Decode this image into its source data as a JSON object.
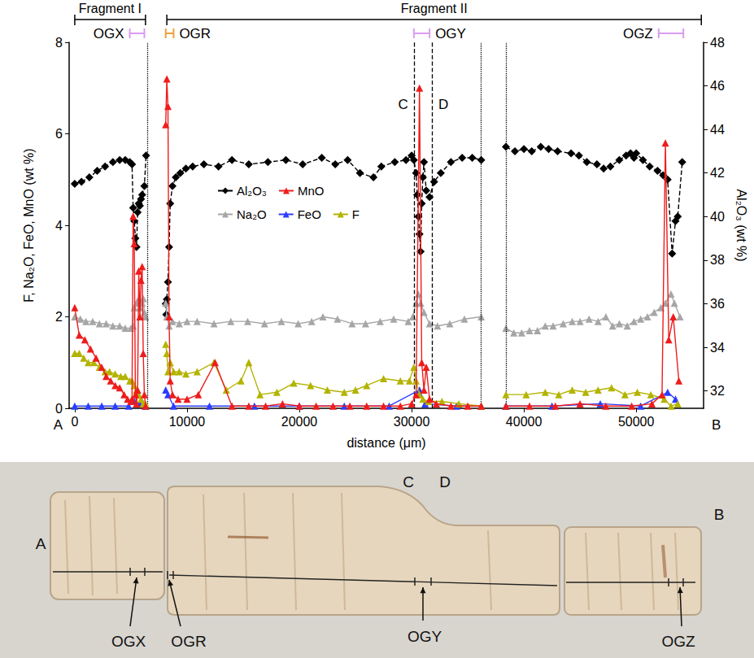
{
  "chart_data": {
    "type": "line",
    "x_label": "distance (μm)",
    "y_label": "F, Na₂O, FeO, MnO (wt %)",
    "y2_label": "Al₂O₃ (wt %)",
    "xlim": [
      -500,
      56000
    ],
    "xticks": [
      0,
      10000,
      20000,
      30000,
      40000,
      50000
    ],
    "ylim": [
      0,
      8
    ],
    "yticks": [
      0,
      2,
      4,
      6,
      8
    ],
    "y2lim": [
      31.2,
      48
    ],
    "y2ticks": [
      32,
      34,
      36,
      38,
      40,
      42,
      44,
      46,
      48
    ],
    "grid": false,
    "legend": "left",
    "end_labels": [
      "A",
      "B"
    ],
    "fragments": [
      {
        "label": "Fragment I",
        "from": 0,
        "to": 6300
      },
      {
        "label": "Fragment II",
        "from": 8200,
        "to": 55800
      }
    ],
    "spots": [
      {
        "label": "OGX",
        "from": 4900,
        "to": 6200,
        "color": "#d99cf0"
      },
      {
        "label": "OGR",
        "from": 8100,
        "to": 8800,
        "color": "#f0a040"
      },
      {
        "label": "OGY",
        "from": 30200,
        "to": 31600,
        "color": "#d99cf0"
      },
      {
        "label": "OGZ",
        "from": 52000,
        "to": 54200,
        "color": "#d99cf0"
      }
    ],
    "vlines": [
      {
        "x": 6450,
        "line_style": "dotted"
      },
      {
        "x": 30200,
        "line_style": "dashed",
        "label": "C"
      },
      {
        "x": 31800,
        "line_style": "dashed",
        "label": "D"
      },
      {
        "x": 36200,
        "line_style": "dotted"
      },
      {
        "x": 38400,
        "line_style": "dotted"
      }
    ],
    "series": [
      {
        "name": "Al₂O₃",
        "color": "#000000",
        "axis": "y2",
        "marker": "diamond",
        "line_style": "dashed",
        "x": [
          0,
          600,
          1300,
          2000,
          2700,
          3400,
          4000,
          4500,
          4900,
          5100,
          5200,
          5300,
          5400,
          5500,
          5600,
          5700,
          5800,
          5900,
          6000,
          6200,
          6350,
          7000,
          8100,
          8150,
          8200,
          8300,
          8400,
          8500,
          8700,
          9000,
          9400,
          9900,
          10500,
          11500,
          12800,
          14000,
          15500,
          17200,
          18800,
          20300,
          22000,
          23200,
          24300,
          25400,
          26600,
          27300,
          28500,
          29500,
          30000,
          30200,
          30400,
          30500,
          30600,
          30700,
          30800,
          30900,
          31000,
          31100,
          31300,
          31600,
          32000,
          32600,
          33500,
          34500,
          35400,
          36200,
          37300,
          38400,
          39200,
          40000,
          40700,
          41500,
          42200,
          43000,
          44200,
          44900,
          45600,
          46500,
          47100,
          47700,
          48500,
          49100,
          49500,
          49800,
          50000,
          50600,
          51200,
          51900,
          52400,
          52800,
          53200,
          53500,
          53700,
          54100
        ],
        "values": [
          41.5,
          41.6,
          41.8,
          42.1,
          42.3,
          42.5,
          42.6,
          42.6,
          42.5,
          42.4,
          40.4,
          39.8,
          39.0,
          38.6,
          40.2,
          40.6,
          40.5,
          40.8,
          41.0,
          41.4,
          42.8,
          null,
          36.0,
          35.5,
          36.2,
          37.0,
          38.6,
          40.6,
          41.4,
          41.8,
          42.0,
          42.2,
          42.3,
          42.4,
          42.3,
          42.6,
          42.4,
          42.5,
          42.6,
          42.4,
          42.7,
          42.4,
          42.6,
          42.0,
          41.8,
          42.3,
          42.5,
          42.6,
          42.8,
          42.6,
          42.0,
          41.0,
          40.0,
          39.2,
          38.4,
          40.6,
          41.8,
          42.5,
          41.2,
          40.9,
          41.6,
          42.0,
          42.5,
          42.7,
          42.7,
          42.6,
          null,
          43.2,
          43.0,
          43.1,
          43.0,
          43.2,
          43.1,
          43.0,
          42.9,
          42.8,
          42.5,
          42.4,
          42.2,
          42.3,
          42.6,
          42.8,
          42.9,
          42.7,
          42.9,
          42.6,
          42.3,
          42.1,
          41.9,
          41.7,
          38.3,
          39.8,
          40.0,
          42.5
        ]
      },
      {
        "name": "MnO",
        "color": "#ee1c1c",
        "marker": "triangle",
        "line_style": "solid",
        "x": [
          0,
          400,
          900,
          1400,
          1900,
          2400,
          2800,
          3200,
          3600,
          4000,
          4400,
          4700,
          5000,
          5100,
          5200,
          5300,
          5400,
          5500,
          5600,
          5700,
          5800,
          5900,
          6000,
          6100,
          6200,
          6300,
          7000,
          8100,
          8200,
          8300,
          8400,
          8500,
          8700,
          9200,
          10000,
          11000,
          12500,
          14000,
          15500,
          17000,
          18500,
          20000,
          21500,
          23000,
          24500,
          26000,
          27500,
          29000,
          30000,
          30400,
          30700,
          30900,
          31100,
          31300,
          31600,
          32200,
          33500,
          35000,
          36200,
          37300,
          38400,
          40500,
          42800,
          45000,
          47300,
          49600,
          51400,
          52300,
          52600,
          52900,
          53300,
          53800
        ],
        "values": [
          2.2,
          1.6,
          1.5,
          1.3,
          1.1,
          0.9,
          0.7,
          0.6,
          0.5,
          0.45,
          0.3,
          0.2,
          0.15,
          0.2,
          4.2,
          3.6,
          0.3,
          0.1,
          0.4,
          3.0,
          2.0,
          2.8,
          3.1,
          1.2,
          0.3,
          0.05,
          null,
          6.2,
          7.2,
          6.6,
          2.0,
          0.6,
          0.3,
          0.2,
          0.2,
          0.3,
          1.0,
          0.05,
          0.05,
          0.05,
          0.1,
          0.05,
          0.05,
          0.05,
          0.05,
          0.05,
          0.05,
          0.05,
          0.1,
          0.3,
          7.0,
          1.0,
          0.4,
          0.9,
          0.2,
          0.1,
          0.05,
          0.05,
          0.05,
          null,
          0.05,
          0.05,
          0.05,
          0.1,
          0.05,
          0.05,
          0.1,
          0.3,
          5.8,
          1.5,
          2.0,
          0.6
        ]
      },
      {
        "name": "Na₂O",
        "color": "#a6a6a6",
        "marker": "triangle",
        "line_style": "solid",
        "x": [
          0,
          500,
          1000,
          1600,
          2200,
          2800,
          3400,
          4000,
          4500,
          5000,
          5200,
          5300,
          5500,
          5600,
          5800,
          6000,
          6100,
          6200,
          6300,
          7000,
          8100,
          8200,
          8400,
          8700,
          9300,
          10000,
          10900,
          12400,
          13900,
          15400,
          16900,
          18400,
          19900,
          21100,
          22100,
          23400,
          24700,
          25900,
          27200,
          28400,
          29700,
          30100,
          30400,
          30600,
          30800,
          31100,
          31600,
          32300,
          33400,
          34700,
          36200,
          37300,
          38400,
          39100,
          39800,
          40500,
          41200,
          41900,
          42600,
          43500,
          44300,
          45000,
          45800,
          46600,
          47300,
          47900,
          48500,
          49200,
          49800,
          50400,
          51000,
          51600,
          52200,
          52600,
          53100,
          53400,
          53900
        ],
        "values": [
          2.0,
          1.95,
          1.9,
          1.9,
          1.85,
          1.85,
          1.8,
          1.8,
          1.75,
          1.75,
          1.8,
          2.2,
          2.3,
          2.35,
          2.2,
          2.3,
          2.4,
          2.1,
          2.0,
          null,
          2.3,
          2.0,
          1.8,
          1.9,
          1.85,
          1.9,
          1.9,
          1.85,
          1.9,
          1.9,
          1.85,
          1.9,
          1.85,
          1.9,
          2.0,
          1.95,
          1.85,
          1.85,
          1.9,
          1.95,
          1.9,
          2.0,
          2.3,
          2.5,
          2.3,
          2.1,
          1.85,
          1.8,
          1.85,
          1.95,
          2.0,
          null,
          1.75,
          1.65,
          1.65,
          1.7,
          1.7,
          1.8,
          1.8,
          1.85,
          1.9,
          1.9,
          1.95,
          1.9,
          2.0,
          1.8,
          1.85,
          1.8,
          1.9,
          1.95,
          2.0,
          2.1,
          2.2,
          2.3,
          2.5,
          2.3,
          2.0
        ]
      },
      {
        "name": "FeO",
        "color": "#2a3cff",
        "marker": "triangle",
        "line_style": "solid",
        "x": [
          0,
          1200,
          2400,
          3600,
          4800,
          5300,
          5800,
          6300,
          7000,
          8100,
          8300,
          8800,
          12000,
          16000,
          20000,
          24000,
          28000,
          30700,
          31200,
          34000,
          36200,
          37300,
          38400,
          42500,
          46800,
          50400,
          52800,
          53500
        ],
        "values": [
          0.05,
          0.05,
          0.05,
          0.05,
          0.05,
          0.15,
          0.1,
          0.05,
          null,
          0.4,
          0.3,
          0.05,
          0.05,
          0.05,
          0.05,
          0.05,
          0.05,
          0.4,
          0.1,
          0.05,
          0.05,
          null,
          0.05,
          0.05,
          0.1,
          0.05,
          0.35,
          0.2
        ]
      },
      {
        "name": "F",
        "color": "#b3b300",
        "marker": "triangle",
        "line_style": "solid",
        "x": [
          0,
          400,
          800,
          1200,
          1700,
          2200,
          2700,
          3100,
          3600,
          4100,
          4500,
          4900,
          5100,
          5300,
          5500,
          5700,
          5900,
          6100,
          6300,
          7000,
          8100,
          8200,
          8300,
          8500,
          8800,
          9300,
          9900,
          10900,
          12400,
          13500,
          14800,
          15500,
          16500,
          18000,
          19500,
          21000,
          22500,
          24000,
          25000,
          26000,
          27500,
          29000,
          29800,
          30200,
          30400,
          30700,
          31000,
          31500,
          32700,
          34200,
          36200,
          37300,
          38400,
          40200,
          41900,
          43100,
          44300,
          45500,
          46600,
          47800,
          49000,
          50100,
          51300,
          52500,
          53100,
          53700
        ],
        "values": [
          1.2,
          1.2,
          1.1,
          1.0,
          1.0,
          0.9,
          0.8,
          0.8,
          0.75,
          0.7,
          0.7,
          0.6,
          0.6,
          0.5,
          0.4,
          0.3,
          0.2,
          0.1,
          0.1,
          null,
          1.4,
          1.2,
          0.8,
          1.0,
          0.8,
          0.8,
          0.75,
          0.8,
          1.0,
          0.4,
          0.6,
          1.0,
          0.3,
          0.35,
          0.55,
          0.5,
          0.4,
          0.35,
          0.4,
          0.5,
          0.65,
          0.6,
          0.6,
          0.9,
          0.6,
          0.3,
          0.2,
          0.15,
          0.15,
          0.1,
          0.05,
          null,
          0.3,
          0.3,
          0.35,
          0.3,
          0.4,
          0.35,
          0.4,
          0.45,
          0.3,
          0.35,
          0.3,
          0.2,
          0.05,
          0.1
        ]
      }
    ]
  },
  "photo": {
    "labels": [
      "A",
      "B",
      "C",
      "D",
      "OGX",
      "OGR",
      "OGY",
      "OGZ"
    ]
  }
}
